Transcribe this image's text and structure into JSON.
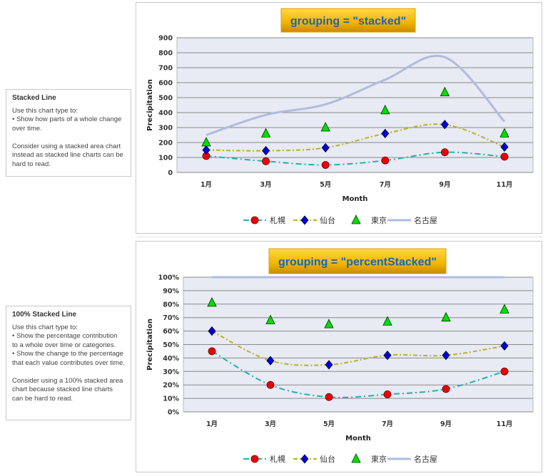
{
  "panels": [
    {
      "title": "Stacked Line",
      "body": "Use this chart type to:\n• Show how parts of a whole change over time.\n\nConsider using a stacked area chart instead as stacked line charts can be hard to read."
    },
    {
      "title": "100% Stacked Line",
      "body": "Use this chart type to:\n• Show the percentage contribution to a whole over time or categories.\n• Show the change to the percentage that each value contributes over time.\n\nConsider using a 100% stacked area chart because stacked line charts can be hard to read."
    }
  ],
  "chart_data": [
    {
      "type": "line",
      "title": "grouping = \"stacked\"",
      "xlabel": "Month",
      "ylabel": "Precipitation",
      "categories": [
        "1月",
        "3月",
        "5月",
        "7月",
        "9月",
        "11月"
      ],
      "ylim": [
        0,
        900
      ],
      "yticks": [
        "0",
        "100",
        "200",
        "300",
        "400",
        "500",
        "600",
        "700",
        "800",
        "900"
      ],
      "grid": true,
      "legend": "bottom",
      "series": [
        {
          "name": "札幌",
          "values": [
            110,
            75,
            50,
            80,
            135,
            105
          ],
          "color": "#20b2aa",
          "marker": "circle"
        },
        {
          "name": "仙台",
          "values": [
            150,
            145,
            165,
            260,
            320,
            170
          ],
          "color": "#b5b520",
          "marker": "diamond"
        },
        {
          "name": "東京",
          "values": [
            200,
            260,
            300,
            415,
            535,
            260
          ],
          "color": "#00dd00",
          "marker": "triangle"
        },
        {
          "name": "名古屋",
          "values": [
            250,
            385,
            455,
            620,
            770,
            340
          ],
          "color": "#b0bcdc",
          "marker": "none"
        }
      ]
    },
    {
      "type": "line",
      "title": "grouping = \"percentStacked\"",
      "xlabel": "Month",
      "ylabel": "Precipitation",
      "categories": [
        "1月",
        "3月",
        "5月",
        "7月",
        "9月",
        "11月"
      ],
      "ylim": [
        0,
        100
      ],
      "yticks": [
        "0%",
        "10%",
        "20%",
        "30%",
        "40%",
        "50%",
        "60%",
        "70%",
        "80%",
        "90%",
        "100%"
      ],
      "grid": true,
      "legend": "bottom",
      "series": [
        {
          "name": "札幌",
          "values": [
            45,
            20,
            11,
            13,
            17,
            30
          ],
          "color": "#20b2aa",
          "marker": "circle"
        },
        {
          "name": "仙台",
          "values": [
            60,
            38,
            35,
            42,
            42,
            49
          ],
          "color": "#b5b520",
          "marker": "diamond"
        },
        {
          "name": "東京",
          "values": [
            81,
            68,
            65,
            67,
            70,
            76
          ],
          "color": "#00dd00",
          "marker": "triangle"
        },
        {
          "name": "名古屋",
          "values": [
            100,
            100,
            100,
            100,
            100,
            100
          ],
          "color": "#b0bcdc",
          "marker": "none"
        }
      ]
    }
  ]
}
